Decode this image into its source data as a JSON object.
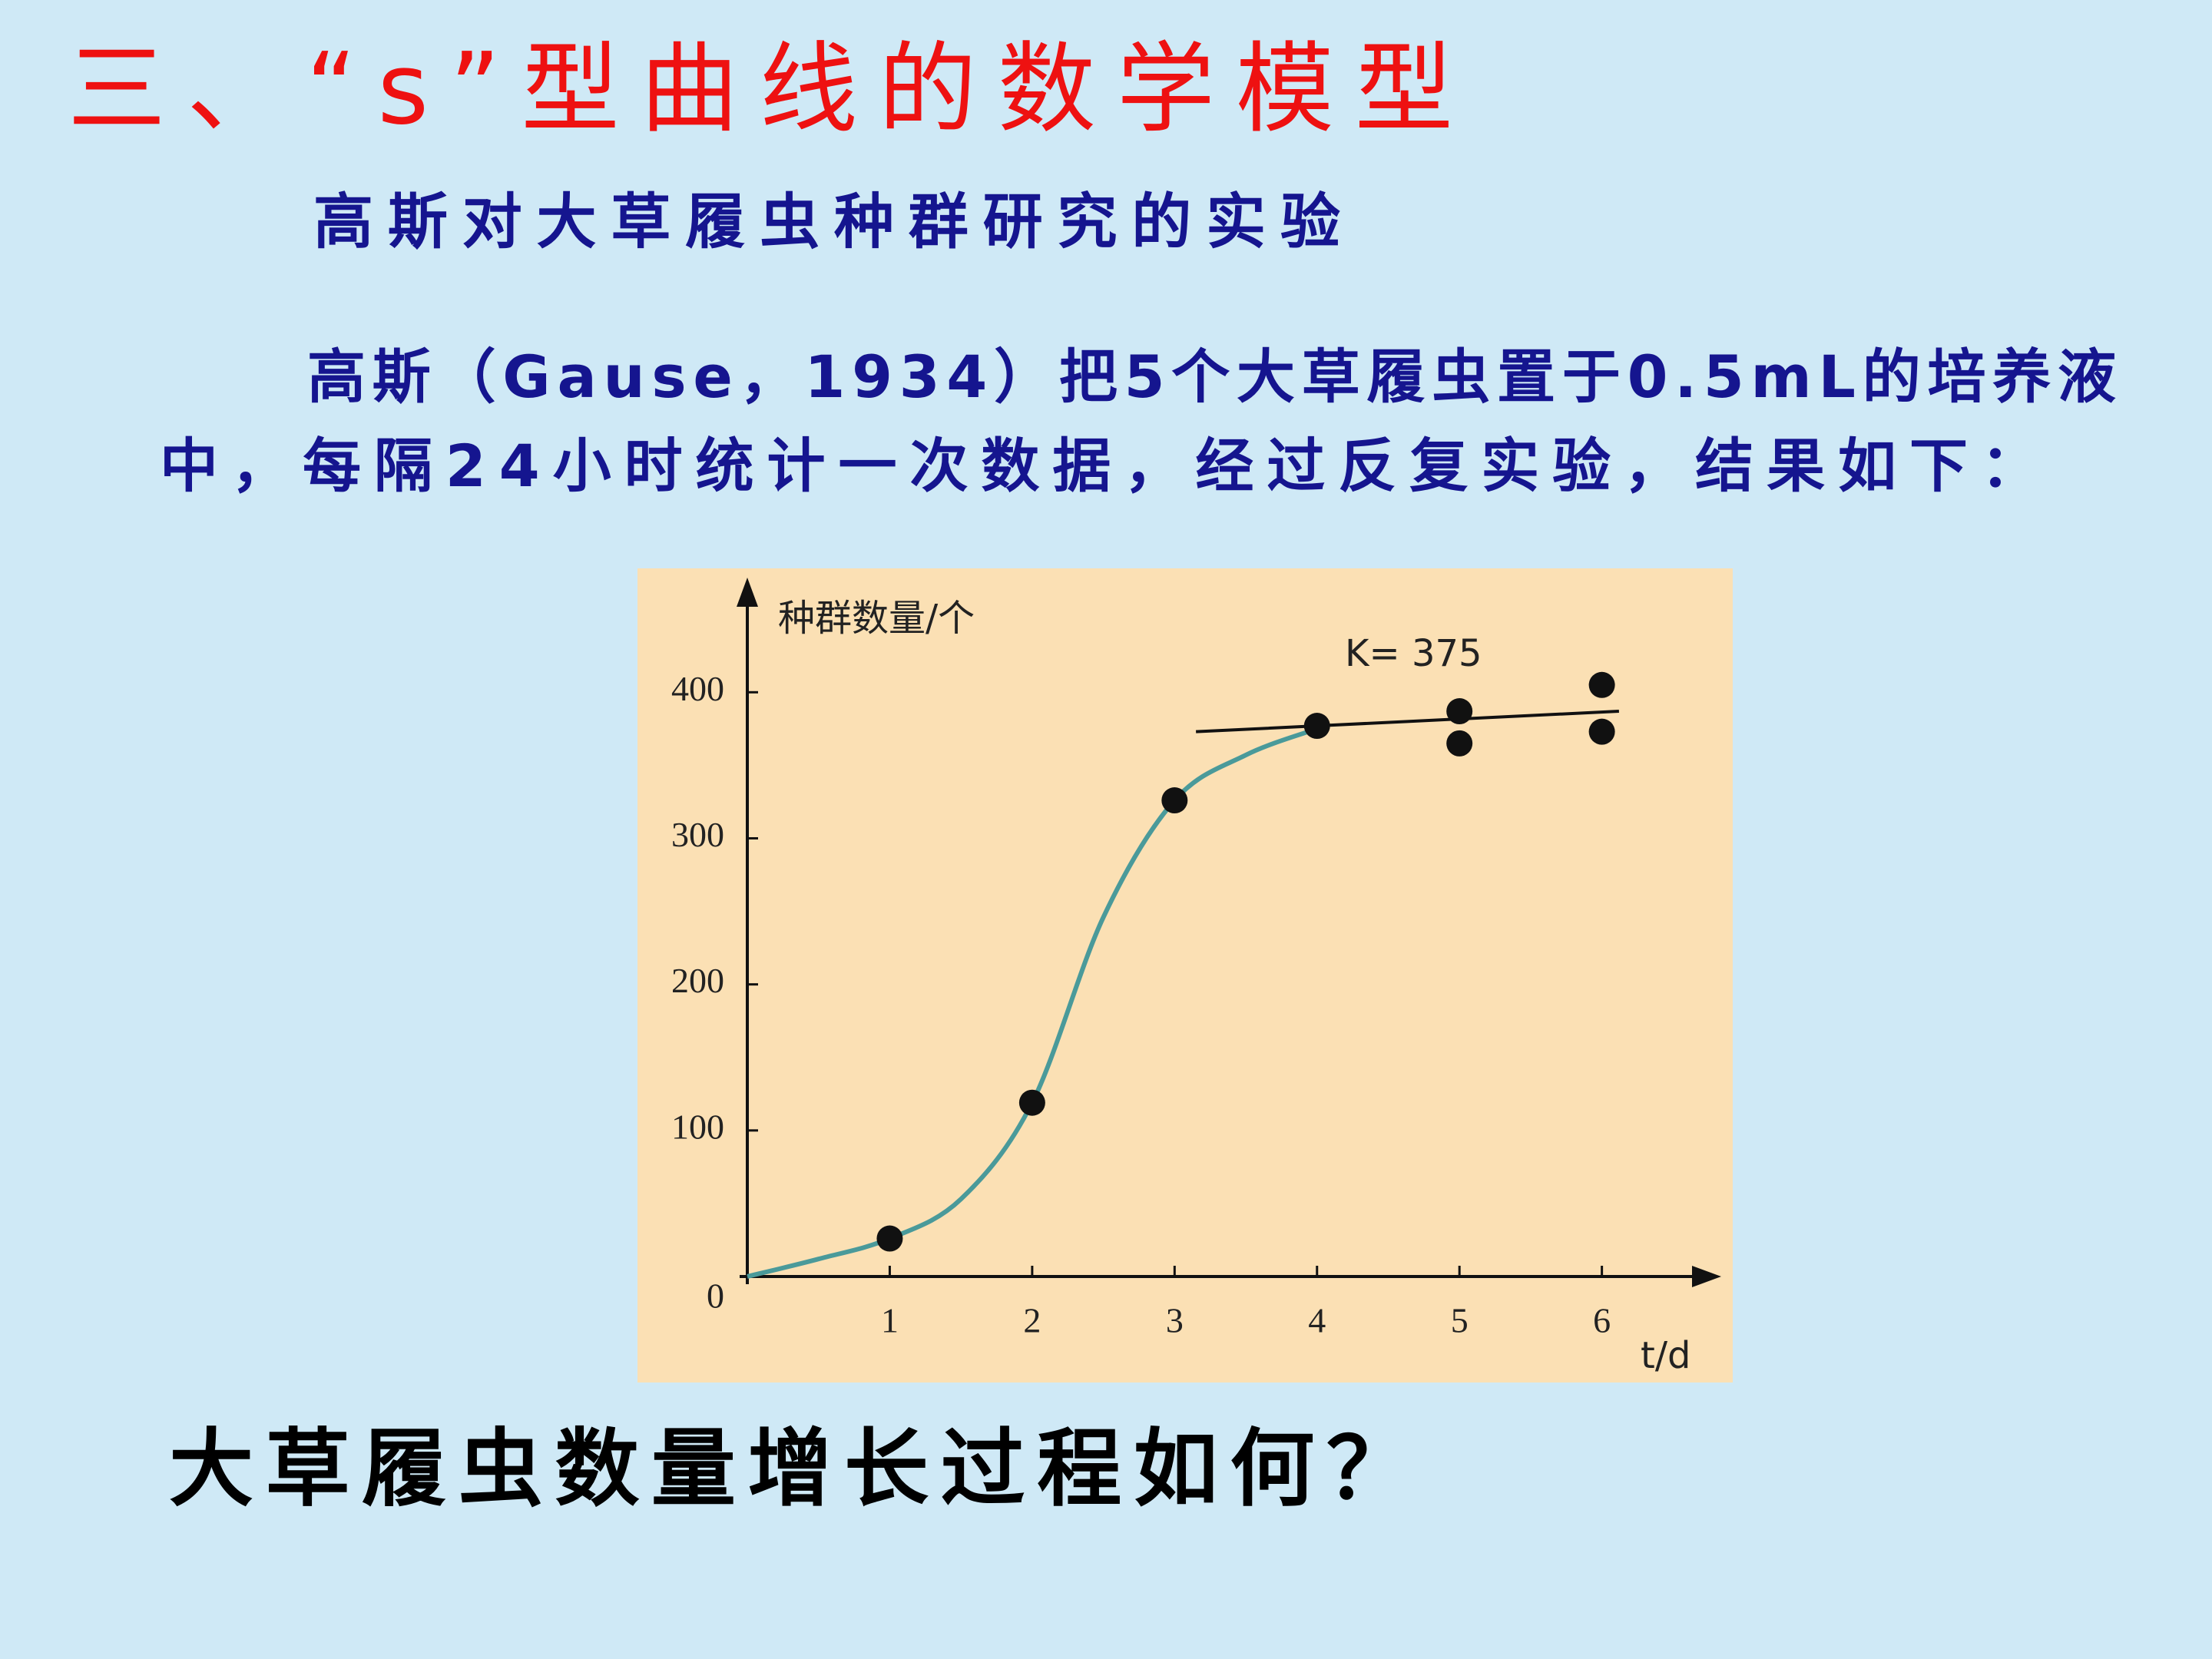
{
  "title": "三、“s”型曲线的数学模型",
  "subtitle": "高斯对大草履虫种群研究的实验",
  "paragraph": [
    "高斯（Gause，1934）把5个大草履虫置于0.5mL的培养液",
    "中，每隔24小时统计一次数据，经过反复实验，结果如下："
  ],
  "question": "大草履虫数量增长过程如何？",
  "chart_data": {
    "type": "scatter",
    "y_label": "种群数量/个",
    "x_label": "t/d",
    "annotation": "K= 375",
    "xlim": [
      0,
      6.73
    ],
    "ylim": [
      0,
      468
    ],
    "xticks": [
      1,
      2,
      3,
      4,
      5,
      6
    ],
    "yticks": [
      0,
      100,
      200,
      300,
      400
    ],
    "x": [
      1,
      2,
      3,
      4,
      5,
      5,
      6,
      6
    ],
    "values": [
      26,
      119,
      326,
      377,
      387,
      365,
      405,
      373
    ],
    "color": "#111111",
    "curve": {
      "x": [
        0,
        0.5,
        1,
        1.5,
        2,
        2.5,
        3,
        3.5,
        4
      ],
      "values": [
        0,
        12,
        26,
        53,
        119,
        246,
        326,
        357,
        375
      ],
      "color": "#4a9a9a"
    },
    "k_line": {
      "x": [
        3.15,
        6.12
      ],
      "values": [
        373,
        387
      ],
      "color": "#111111"
    }
  }
}
